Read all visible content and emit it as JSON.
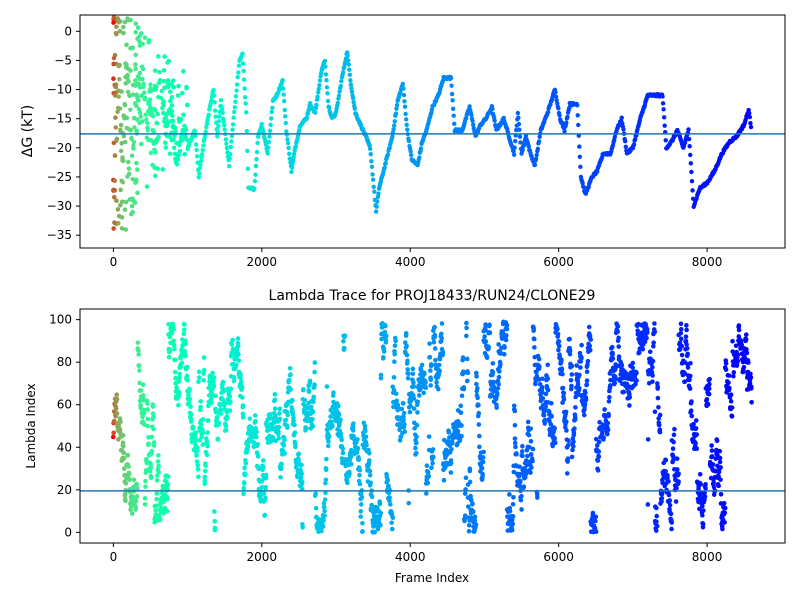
{
  "chart_data": [
    {
      "type": "scatter",
      "title": "",
      "xlabel": "",
      "ylabel": "ΔG (kT)",
      "xlim": [
        -450,
        9050
      ],
      "ylim": [
        -37.2,
        2.8
      ],
      "xticks": [
        0,
        2000,
        4000,
        6000,
        8000
      ],
      "yticks": [
        0,
        -5,
        -10,
        -15,
        -20,
        -25,
        -30,
        -35
      ],
      "hline": -17.6,
      "colormap": "rainbow (reversed: red at frame 0, violet at end)",
      "x_range": [
        0,
        8600
      ],
      "trace_points": [
        [
          0,
          0.5
        ],
        [
          40,
          -20
        ],
        [
          80,
          -8
        ],
        [
          120,
          -30
        ],
        [
          170,
          -5
        ],
        [
          220,
          -12
        ],
        [
          260,
          -24
        ],
        [
          300,
          -9
        ],
        [
          360,
          -15
        ],
        [
          400,
          -6
        ],
        [
          450,
          -18
        ],
        [
          500,
          -10
        ],
        [
          560,
          -22
        ],
        [
          620,
          -8
        ],
        [
          700,
          -16
        ],
        [
          780,
          -14
        ],
        [
          850,
          -23
        ],
        [
          950,
          -15
        ],
        [
          1000,
          -20
        ],
        [
          1100,
          -17
        ],
        [
          1150,
          -25
        ],
        [
          1220,
          -19
        ],
        [
          1300,
          -13
        ],
        [
          1350,
          -10
        ],
        [
          1400,
          -18
        ],
        [
          1450,
          -12
        ],
        [
          1500,
          -17
        ],
        [
          1560,
          -23
        ],
        [
          1620,
          -15
        ],
        [
          1700,
          -5
        ],
        [
          1740,
          -4
        ],
        [
          1790,
          -14
        ],
        [
          1820,
          -27
        ],
        [
          1900,
          -27
        ],
        [
          1950,
          -18
        ],
        [
          2000,
          -16
        ],
        [
          2080,
          -21
        ],
        [
          2150,
          -12
        ],
        [
          2200,
          -11
        ],
        [
          2280,
          -8.5
        ],
        [
          2330,
          -17
        ],
        [
          2400,
          -24
        ],
        [
          2450,
          -20
        ],
        [
          2520,
          -16
        ],
        [
          2600,
          -15
        ],
        [
          2650,
          -12.5
        ],
        [
          2720,
          -14
        ],
        [
          2800,
          -7
        ],
        [
          2850,
          -5
        ],
        [
          2900,
          -13
        ],
        [
          2950,
          -15
        ],
        [
          3000,
          -14
        ],
        [
          3080,
          -8
        ],
        [
          3150,
          -3.5
        ],
        [
          3200,
          -9
        ],
        [
          3260,
          -14
        ],
        [
          3330,
          -16
        ],
        [
          3400,
          -18
        ],
        [
          3460,
          -20
        ],
        [
          3540,
          -31
        ],
        [
          3580,
          -27
        ],
        [
          3640,
          -24
        ],
        [
          3700,
          -21
        ],
        [
          3760,
          -18
        ],
        [
          3830,
          -12
        ],
        [
          3900,
          -9
        ],
        [
          3960,
          -17
        ],
        [
          4020,
          -22
        ],
        [
          4100,
          -23
        ],
        [
          4160,
          -19
        ],
        [
          4220,
          -17
        ],
        [
          4300,
          -13
        ],
        [
          4380,
          -11
        ],
        [
          4450,
          -8
        ],
        [
          4550,
          -8
        ],
        [
          4600,
          -17
        ],
        [
          4700,
          -17
        ],
        [
          4800,
          -13
        ],
        [
          4880,
          -18
        ],
        [
          4950,
          -16
        ],
        [
          5020,
          -15
        ],
        [
          5100,
          -13
        ],
        [
          5160,
          -17
        ],
        [
          5260,
          -15
        ],
        [
          5330,
          -18
        ],
        [
          5400,
          -21
        ],
        [
          5450,
          -14
        ],
        [
          5500,
          -21
        ],
        [
          5560,
          -18
        ],
        [
          5620,
          -21
        ],
        [
          5680,
          -23
        ],
        [
          5760,
          -17
        ],
        [
          5850,
          -14
        ],
        [
          5950,
          -10
        ],
        [
          6020,
          -15
        ],
        [
          6080,
          -17
        ],
        [
          6150,
          -12.5
        ],
        [
          6250,
          -12.5
        ],
        [
          6300,
          -25
        ],
        [
          6360,
          -28
        ],
        [
          6450,
          -25
        ],
        [
          6520,
          -24
        ],
        [
          6600,
          -21
        ],
        [
          6700,
          -21
        ],
        [
          6780,
          -17
        ],
        [
          6850,
          -15
        ],
        [
          6920,
          -21
        ],
        [
          7000,
          -20
        ],
        [
          7100,
          -15
        ],
        [
          7200,
          -11
        ],
        [
          7400,
          -11
        ],
        [
          7450,
          -20
        ],
        [
          7520,
          -19
        ],
        [
          7600,
          -17
        ],
        [
          7680,
          -20
        ],
        [
          7750,
          -17
        ],
        [
          7820,
          -30
        ],
        [
          7900,
          -27
        ],
        [
          8000,
          -26
        ],
        [
          8100,
          -24
        ],
        [
          8200,
          -21
        ],
        [
          8300,
          -19
        ],
        [
          8400,
          -18
        ],
        [
          8500,
          -16
        ],
        [
          8560,
          -13.5
        ],
        [
          8600,
          -17
        ]
      ]
    },
    {
      "type": "scatter",
      "title": "Lambda Trace for PROJ18433/RUN24/CLONE29",
      "xlabel": "Frame Index",
      "ylabel": "Lambda Index",
      "xlim": [
        -450,
        9050
      ],
      "ylim": [
        -5,
        105
      ],
      "xticks": [
        0,
        2000,
        4000,
        6000,
        8000
      ],
      "yticks": [
        0,
        20,
        40,
        60,
        80,
        100
      ],
      "hline": 19.5,
      "colormap": "rainbow (reversed: red at frame 0, violet at end)",
      "x_range": [
        0,
        8600
      ],
      "value_range": [
        0,
        99
      ]
    }
  ]
}
